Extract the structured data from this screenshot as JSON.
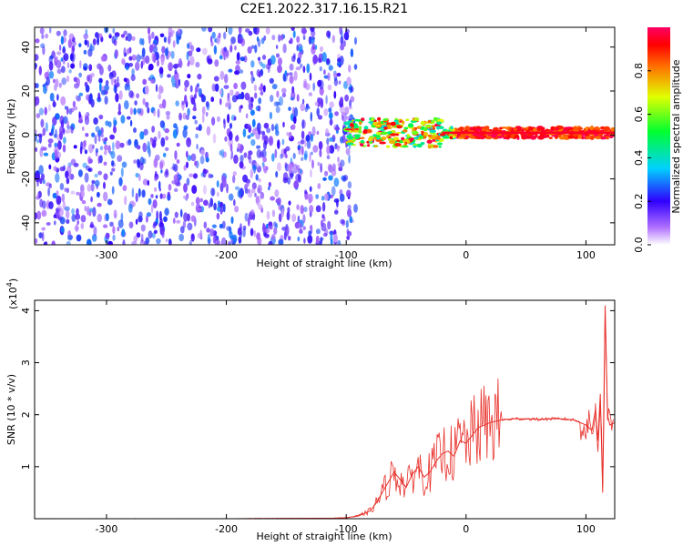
{
  "title": "C2E1.2022.317.16.15.R21",
  "chart_data": [
    {
      "type": "heatmap",
      "title": "C2E1.2022.317.16.15.R21",
      "xlabel": "Height of straight line (km)",
      "ylabel": "Frequency (Hz)",
      "xlim": [
        -360,
        124
      ],
      "ylim": [
        -50,
        49
      ],
      "x_ticks": [
        -300,
        -200,
        -100,
        0,
        100
      ],
      "y_ticks": [
        -40,
        -20,
        0,
        20,
        40
      ],
      "grid": false,
      "description_regions": [
        {
          "x_range": [
            -360,
            -100
          ],
          "freq_range": [
            -50,
            49
          ],
          "amplitude_range": [
            0.05,
            0.3
          ]
        },
        {
          "x_range": [
            -100,
            124
          ],
          "freq_center": 1,
          "freq_halfwidth": 4,
          "amplitude_range": [
            0.3,
            1.0
          ]
        }
      ],
      "colorbar": {
        "label": "Normalized spectral amplitude",
        "range": [
          0.0,
          1.0
        ],
        "ticks": [
          0.0,
          0.2,
          0.4,
          0.6,
          0.8
        ],
        "colors": [
          "#ffffff",
          "#8000ff",
          "#0000ff",
          "#00ffff",
          "#00ff00",
          "#ffff00",
          "#ff8000",
          "#ff0000",
          "#ff0066"
        ]
      }
    },
    {
      "type": "line",
      "xlabel": "Height of straight line (km)",
      "ylabel": "SNR (10 * v/v)",
      "y_multiplier_label": "(x10",
      "y_multiplier_exp": "4",
      "xlim": [
        -360,
        124
      ],
      "ylim": [
        0,
        4.2
      ],
      "x_ticks": [
        -300,
        -200,
        -100,
        0,
        100
      ],
      "y_ticks": [
        1,
        2,
        3,
        4
      ],
      "grid": false,
      "color": "#e8302a",
      "x": [
        -360,
        -300,
        -200,
        -110,
        -100,
        -90,
        -80,
        -75,
        -70,
        -65,
        -60,
        -55,
        -50,
        -45,
        -40,
        -35,
        -30,
        -25,
        -20,
        -15,
        -10,
        -5,
        0,
        5,
        10,
        20,
        30,
        40,
        50,
        60,
        70,
        80,
        90,
        95,
        100,
        105,
        108,
        110,
        112,
        114,
        116,
        118,
        120,
        124
      ],
      "y": [
        0.0,
        0.0,
        0.0,
        0.01,
        0.02,
        0.05,
        0.15,
        0.3,
        0.5,
        0.7,
        0.9,
        0.75,
        0.6,
        0.85,
        1.0,
        0.8,
        0.9,
        1.1,
        1.25,
        1.3,
        1.2,
        1.5,
        1.45,
        1.6,
        1.75,
        1.85,
        1.9,
        1.92,
        1.92,
        1.91,
        1.92,
        1.92,
        1.9,
        1.85,
        1.8,
        1.7,
        2.1,
        1.5,
        2.4,
        0.5,
        4.1,
        2.0,
        1.8,
        1.85
      ]
    }
  ]
}
